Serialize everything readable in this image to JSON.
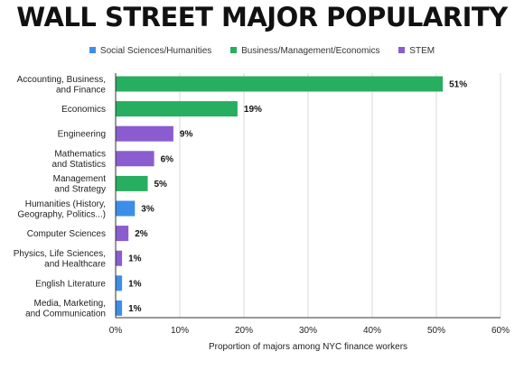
{
  "title": "WALL STREET MAJOR POPULARITY",
  "colors": {
    "social_sciences": "#3d8ee8",
    "business": "#27ae60",
    "stem": "#8a5cd0",
    "grid": "#d9d9d9",
    "axis": "#333333",
    "text": "#222222"
  },
  "legend": [
    {
      "label": "Social Sciences/Humanities",
      "group": "social_sciences"
    },
    {
      "label": "Business/Management/Economics",
      "group": "business"
    },
    {
      "label": "STEM",
      "group": "stem"
    }
  ],
  "chart_data": {
    "type": "bar",
    "orientation": "horizontal",
    "title": "WALL STREET MAJOR POPULARITY",
    "xlabel": "Proportion of majors among NYC finance workers",
    "ylabel": "",
    "xlim": [
      0,
      60
    ],
    "xticks": [
      "0%",
      "10%",
      "20%",
      "30%",
      "40%",
      "50%",
      "60%"
    ],
    "xtick_values": [
      0,
      10,
      20,
      30,
      40,
      50,
      60
    ],
    "grid": true,
    "legend_position": "top",
    "bars": [
      {
        "label": [
          "Accounting, Business,",
          "and Finance"
        ],
        "value": 51,
        "value_label": "51%",
        "group": "business"
      },
      {
        "label": [
          "Economics"
        ],
        "value": 19,
        "value_label": "19%",
        "group": "business"
      },
      {
        "label": [
          "Engineering"
        ],
        "value": 9,
        "value_label": "9%",
        "group": "stem"
      },
      {
        "label": [
          "Mathematics",
          "and Statistics"
        ],
        "value": 6,
        "value_label": "6%",
        "group": "stem"
      },
      {
        "label": [
          "Management",
          "and Strategy"
        ],
        "value": 5,
        "value_label": "5%",
        "group": "business"
      },
      {
        "label": [
          "Humanities (History,",
          "Geography, Politics...)"
        ],
        "value": 3,
        "value_label": "3%",
        "group": "social_sciences"
      },
      {
        "label": [
          "Computer Sciences"
        ],
        "value": 2,
        "value_label": "2%",
        "group": "stem"
      },
      {
        "label": [
          "Physics, Life Sciences,",
          "and Healthcare"
        ],
        "value": 1,
        "value_label": "1%",
        "group": "stem"
      },
      {
        "label": [
          "English Literature"
        ],
        "value": 1,
        "value_label": "1%",
        "group": "social_sciences"
      },
      {
        "label": [
          "Media, Marketing,",
          "and Communication"
        ],
        "value": 1,
        "value_label": "1%",
        "group": "social_sciences"
      }
    ]
  }
}
